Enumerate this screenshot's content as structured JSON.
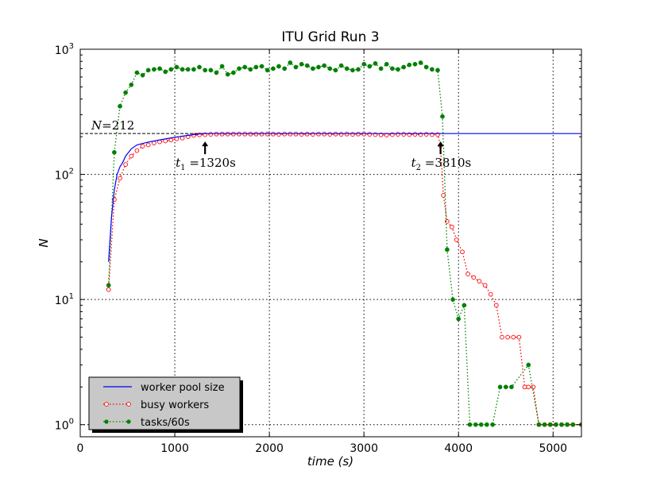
{
  "chart_data": {
    "type": "line",
    "title": "ITU Grid Run 3",
    "xlabel": "time (s)",
    "ylabel": "N",
    "xlim": [
      0,
      5300
    ],
    "ylim": [
      0.8,
      1000
    ],
    "yscale": "log",
    "grid": true,
    "legend_position": "lower-left",
    "x_ticks": [
      "0",
      "1000",
      "2000",
      "3000",
      "4000",
      "5000"
    ],
    "y_ticks": [
      {
        "base": "10",
        "exp": "0",
        "value": 1
      },
      {
        "base": "10",
        "exp": "1",
        "value": 10
      },
      {
        "base": "10",
        "exp": "2",
        "value": 100
      },
      {
        "base": "10",
        "exp": "3",
        "value": 1000
      }
    ],
    "series": [
      {
        "name": "worker pool size",
        "color": "#0000ff",
        "style": "solid",
        "marker": "none",
        "x": [
          300,
          330,
          360,
          390,
          420,
          450,
          480,
          540,
          600,
          700,
          800,
          900,
          1000,
          1100,
          1200,
          1300,
          1500,
          2000,
          3000,
          4000,
          5300
        ],
        "y": [
          20,
          45,
          75,
          100,
          115,
          125,
          140,
          160,
          172,
          180,
          186,
          192,
          198,
          203,
          208,
          212,
          212,
          212,
          212,
          212,
          212
        ]
      },
      {
        "name": "busy workers",
        "color": "#ff0000",
        "style": "dotted",
        "marker": "open-circle",
        "x": [
          300,
          360,
          420,
          480,
          540,
          600,
          660,
          720,
          780,
          840,
          900,
          960,
          1020,
          1080,
          1140,
          1200,
          1260,
          1320,
          1380,
          1440,
          1500,
          1560,
          1620,
          1680,
          1740,
          1800,
          1860,
          1920,
          1980,
          2040,
          2100,
          2160,
          2220,
          2280,
          2340,
          2400,
          2460,
          2520,
          2580,
          2640,
          2700,
          2760,
          2820,
          2880,
          2940,
          3000,
          3060,
          3120,
          3180,
          3240,
          3300,
          3360,
          3420,
          3480,
          3540,
          3600,
          3660,
          3720,
          3780,
          3810,
          3840,
          3880,
          3930,
          3980,
          4040,
          4100,
          4160,
          4220,
          4280,
          4340,
          4400,
          4460,
          4520,
          4580,
          4640,
          4700,
          4740,
          4790,
          4850,
          4910,
          4970,
          5030,
          5090,
          5150,
          5210,
          5300
        ],
        "y": [
          12,
          63,
          93,
          120,
          140,
          155,
          168,
          172,
          178,
          182,
          185,
          188,
          192,
          195,
          200,
          205,
          207,
          208,
          209,
          210,
          210,
          210,
          210,
          210,
          210,
          210,
          210,
          210,
          210,
          210,
          209,
          210,
          210,
          210,
          209,
          210,
          209,
          210,
          210,
          209,
          210,
          209,
          210,
          209,
          210,
          210,
          209,
          208,
          207,
          206,
          208,
          209,
          209,
          208,
          209,
          208,
          209,
          208,
          208,
          170,
          68,
          42,
          38,
          30,
          24,
          16,
          15,
          14,
          13,
          11,
          9,
          5,
          5,
          5,
          5,
          2,
          2,
          2,
          1,
          1,
          1,
          1,
          1,
          1,
          1,
          1
        ],
        "_note": ""
      },
      {
        "name": "tasks/60s",
        "color": "#008000",
        "style": "dotted",
        "marker": "filled-circle",
        "x": [
          300,
          360,
          420,
          480,
          540,
          600,
          660,
          720,
          780,
          840,
          900,
          960,
          1020,
          1080,
          1140,
          1200,
          1260,
          1320,
          1380,
          1440,
          1500,
          1560,
          1620,
          1680,
          1740,
          1800,
          1860,
          1920,
          1980,
          2040,
          2100,
          2160,
          2220,
          2280,
          2340,
          2400,
          2460,
          2520,
          2580,
          2640,
          2700,
          2760,
          2820,
          2880,
          2940,
          3000,
          3060,
          3120,
          3180,
          3240,
          3300,
          3360,
          3420,
          3480,
          3540,
          3600,
          3660,
          3720,
          3780,
          3830,
          3880,
          3940,
          4000,
          4060,
          4120,
          4180,
          4240,
          4300,
          4360,
          4440,
          4500,
          4560,
          4740,
          4850,
          4910,
          4970,
          5030,
          5090,
          5150,
          5210,
          5300
        ],
        "y": [
          13,
          150,
          350,
          450,
          520,
          650,
          620,
          680,
          690,
          700,
          660,
          690,
          720,
          690,
          690,
          690,
          720,
          680,
          680,
          650,
          730,
          630,
          650,
          700,
          720,
          690,
          720,
          730,
          680,
          700,
          730,
          700,
          780,
          720,
          760,
          740,
          700,
          720,
          740,
          700,
          680,
          740,
          700,
          680,
          690,
          760,
          730,
          770,
          700,
          760,
          700,
          690,
          720,
          750,
          760,
          780,
          720,
          690,
          680,
          290,
          25,
          10,
          7,
          9,
          1,
          1,
          1,
          1,
          1,
          2,
          2,
          2,
          3,
          1,
          1,
          1,
          1,
          1,
          1,
          1,
          1
        ]
      }
    ],
    "annotations": [
      {
        "kind": "hline",
        "label": "N=212",
        "label_var": "N",
        "label_value": "212",
        "value": 212,
        "x_from": 0,
        "x_to": 1300
      },
      {
        "kind": "arrow",
        "label_var": "t",
        "label_sub": "1",
        "label_value": "1320s",
        "x": 1320,
        "y": 212
      },
      {
        "kind": "arrow",
        "label_var": "t",
        "label_sub": "2",
        "label_value": "3810s",
        "x": 3810,
        "y": 212
      }
    ]
  }
}
